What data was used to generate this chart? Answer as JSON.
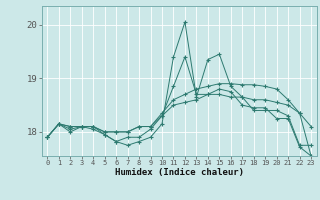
{
  "x": [
    0,
    1,
    2,
    3,
    4,
    5,
    6,
    7,
    8,
    9,
    10,
    11,
    12,
    13,
    14,
    15,
    16,
    17,
    18,
    19,
    20,
    21,
    22,
    23
  ],
  "line1": [
    17.9,
    18.15,
    18.0,
    18.1,
    18.1,
    17.95,
    17.82,
    17.75,
    17.82,
    17.9,
    18.15,
    19.4,
    20.05,
    18.65,
    19.35,
    19.45,
    18.85,
    18.65,
    18.4,
    18.4,
    18.4,
    18.3,
    17.75,
    17.75
  ],
  "line2": [
    17.9,
    18.15,
    18.05,
    18.1,
    18.05,
    17.95,
    17.82,
    17.9,
    17.9,
    18.05,
    18.3,
    18.85,
    19.4,
    18.7,
    18.7,
    18.8,
    18.75,
    18.5,
    18.45,
    18.45,
    18.25,
    18.25,
    17.72,
    17.55
  ],
  "line3": [
    17.9,
    18.15,
    18.1,
    18.1,
    18.1,
    18.0,
    18.0,
    18.0,
    18.1,
    18.1,
    18.3,
    18.5,
    18.55,
    18.6,
    18.7,
    18.7,
    18.65,
    18.65,
    18.6,
    18.6,
    18.55,
    18.5,
    18.35,
    18.1
  ],
  "line4": [
    17.9,
    18.15,
    18.1,
    18.1,
    18.1,
    18.0,
    18.0,
    18.0,
    18.1,
    18.1,
    18.35,
    18.6,
    18.7,
    18.8,
    18.85,
    18.9,
    18.9,
    18.88,
    18.88,
    18.85,
    18.8,
    18.6,
    18.35,
    17.55
  ],
  "bg_color": "#cce8e8",
  "line_color": "#2d7a70",
  "grid_color": "#ffffff",
  "xlabel": "Humidex (Indice chaleur)",
  "yticks": [
    18,
    19,
    20
  ],
  "xtick_labels": [
    "0",
    "1",
    "2",
    "3",
    "4",
    "5",
    "6",
    "7",
    "8",
    "9",
    "10",
    "11",
    "12",
    "13",
    "14",
    "15",
    "16",
    "17",
    "18",
    "19",
    "20",
    "21",
    "22",
    "23"
  ],
  "ylim": [
    17.55,
    20.35
  ],
  "xlim": [
    -0.5,
    23.5
  ]
}
